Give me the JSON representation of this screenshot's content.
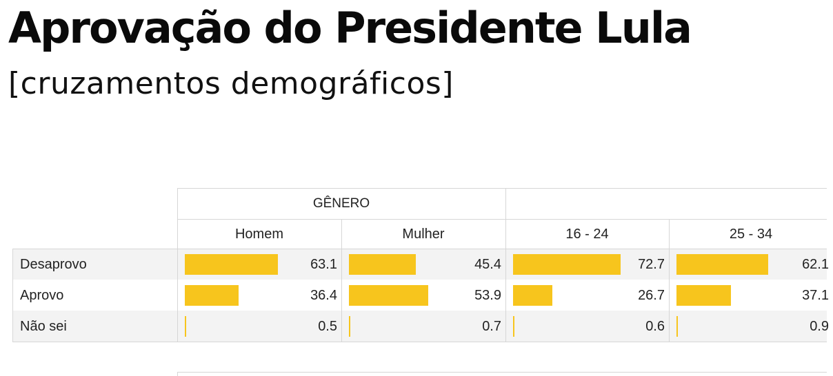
{
  "title": "Aprovação do Presidente Lula",
  "subtitle": "[cruzamentos demográficos]",
  "colors": {
    "bar": "#f7c51d",
    "row_shade": "#f3f3f3",
    "grid": "#d6d6d6"
  },
  "chart_data": {
    "type": "table",
    "group_headers": [
      {
        "label": "GÊNERO",
        "columns": [
          "Homem",
          "Mulher"
        ]
      },
      {
        "label": "",
        "columns": [
          "16 - 24",
          "25 - 34"
        ]
      }
    ],
    "columns": [
      "Homem",
      "Mulher",
      "16 - 24",
      "25 - 34"
    ],
    "rows": [
      {
        "label": "Desaprovo",
        "values": [
          "63.1",
          "45.4",
          "72.7",
          "62.1"
        ]
      },
      {
        "label": "Aprovo",
        "values": [
          "36.4",
          "53.9",
          "26.7",
          "37.1"
        ]
      },
      {
        "label": "Não sei",
        "values": [
          "0.5",
          "0.7",
          "0.6",
          "0.9"
        ]
      }
    ],
    "value_max": 100
  }
}
